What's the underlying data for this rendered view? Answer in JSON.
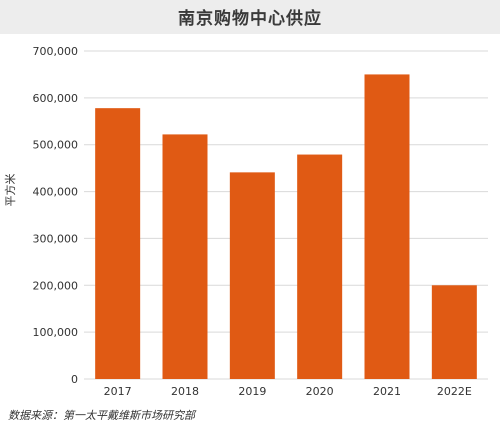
{
  "chart_data": {
    "type": "bar",
    "title": "南京购物中心供应",
    "xlabel": "",
    "ylabel": "平方米",
    "categories": [
      "2017",
      "2018",
      "2019",
      "2020",
      "2021",
      "2022E"
    ],
    "values": [
      578000,
      522000,
      441000,
      479000,
      650000,
      200000
    ],
    "ylim": [
      0,
      700000
    ],
    "yticks": [
      "0",
      "100,000",
      "200,000",
      "300,000",
      "400,000",
      "500,000",
      "600,000",
      "700,000"
    ],
    "ytick_values": [
      0,
      100000,
      200000,
      300000,
      400000,
      500000,
      600000,
      700000
    ],
    "grid": true,
    "bar_color": "#e05a14",
    "grid_color": "#d9d9d9"
  },
  "source_note": "数据来源：第一太平戴维斯市场研究部"
}
